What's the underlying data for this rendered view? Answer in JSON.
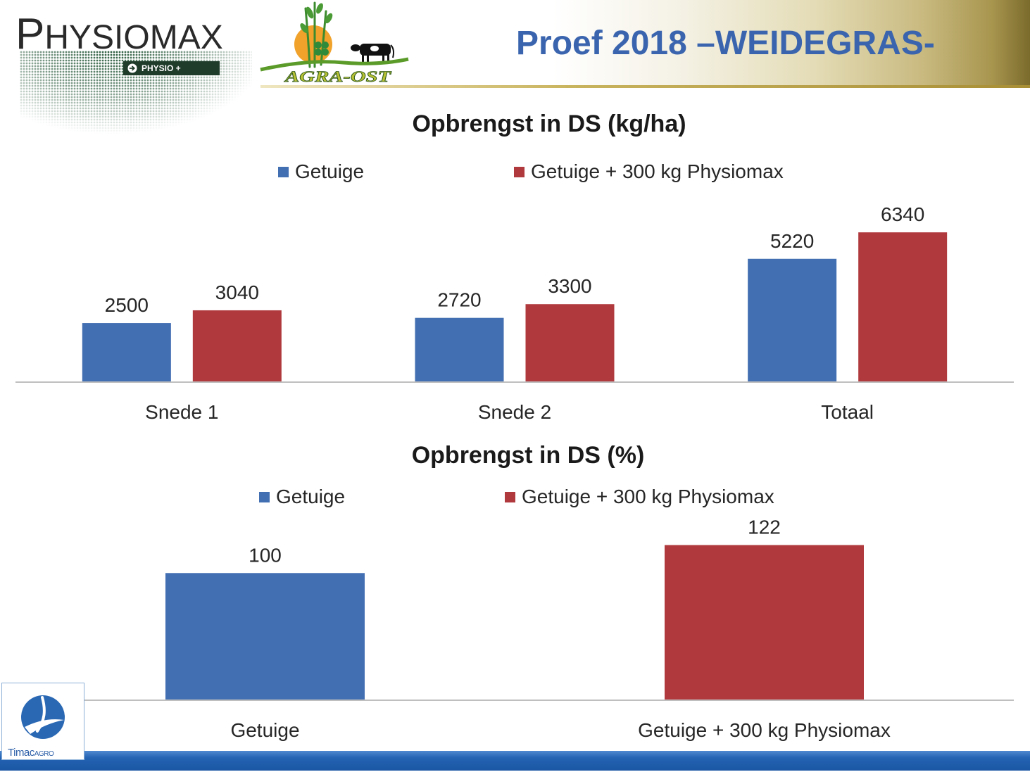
{
  "header": {
    "title": "Proef 2018 –WEIDEGRAS-"
  },
  "logos": {
    "physiomax": {
      "wordmark": "PHYSIOMAX",
      "badge": "PHYSIO +"
    },
    "agra_ost": {
      "wordmark": "AGRA-OST"
    },
    "timac": {
      "brand": "Timac",
      "suffix": "AGRO"
    }
  },
  "theme": {
    "title_color": "#3a65ae",
    "axis_color": "#bfbfbf",
    "label_color": "#262626"
  },
  "chart_data": [
    {
      "type": "bar",
      "title": "Opbrengst in DS (kg/ha)",
      "categories": [
        "Snede 1",
        "Snede 2",
        "Totaal"
      ],
      "series": [
        {
          "name": "Getuige",
          "values": [
            2500,
            2720,
            5220
          ],
          "color": "#426eb2"
        },
        {
          "name": "Getuige + 300 kg Physiomax",
          "values": [
            3040,
            3300,
            6340
          ],
          "color": "#b0393d"
        }
      ],
      "ylim": [
        0,
        7000
      ],
      "y_axis_visible": false,
      "grid": false,
      "legend": "top",
      "data_labels": true
    },
    {
      "type": "bar",
      "title": "Opbrengst in DS (%)",
      "categories": [
        "Getuige",
        "Getuige + 300 kg Physiomax"
      ],
      "values": [
        100,
        122
      ],
      "colors": [
        "#426eb2",
        "#b0393d"
      ],
      "vary_colors_by_category": true,
      "ylim": [
        0,
        140
      ],
      "y_axis_visible": false,
      "grid": false,
      "legend": "top",
      "data_labels": true
    }
  ]
}
